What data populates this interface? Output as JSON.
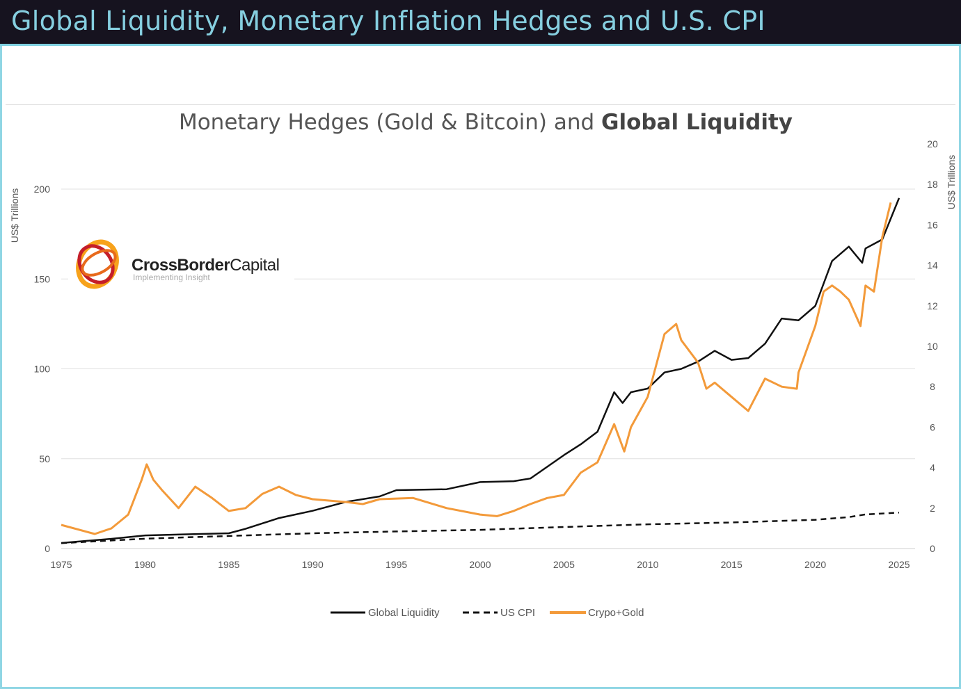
{
  "header": {
    "title": "Global Liquidity, Monetary Inflation Hedges and U.S. CPI"
  },
  "logo": {
    "name": "CrossBorder",
    "name2": "Capital",
    "tagline": "Implementing Insight"
  },
  "colors": {
    "liquidity": "#111111",
    "cpi": "#111111",
    "crypto_gold": "#f39a3a",
    "header_bg": "#16131f",
    "header_text": "#86cfe0"
  },
  "chart_data": {
    "type": "line",
    "title_regular": "Monetary Hedges (Gold & Bitcoin) and ",
    "title_bold": "Global Liquidity",
    "ylabel_left": "US$ Trillions",
    "ylabel_right": "US$ Trillions",
    "xlim": [
      1975,
      2025
    ],
    "ylim_left": [
      0,
      200
    ],
    "ylim_right": [
      0,
      20
    ],
    "x_ticks": [
      "1975",
      "1980",
      "1985",
      "1990",
      "1995",
      "2000",
      "2005",
      "2010",
      "2015",
      "2020",
      "2025"
    ],
    "y_ticks_left": [
      "0",
      "50",
      "100",
      "150",
      "200"
    ],
    "y_ticks_right": [
      "0",
      "2",
      "4",
      "6",
      "8",
      "10",
      "12",
      "14",
      "16",
      "18",
      "20"
    ],
    "grid": true,
    "legend_position": "bottom",
    "series": [
      {
        "name": "Global Liquidity",
        "axis": "left",
        "style": "solid",
        "x": [
          1975,
          1978,
          1980,
          1985,
          1986,
          1988,
          1990,
          1992,
          1994,
          1995,
          1998,
          2000,
          2002,
          2003,
          2005,
          2006,
          2007,
          2008,
          2008.5,
          2009,
          2010,
          2011,
          2012,
          2013,
          2014,
          2015,
          2016,
          2017,
          2018,
          2019,
          2020,
          2021,
          2022,
          2022.8,
          2023,
          2024,
          2025
        ],
        "y": [
          3.1,
          5.4,
          7.3,
          8.5,
          11,
          17,
          21,
          26,
          29,
          32.5,
          33,
          37,
          37.5,
          39,
          52,
          58,
          65,
          87,
          81,
          87,
          89,
          98,
          100,
          104,
          110,
          105,
          106,
          114,
          128,
          127,
          135,
          160,
          168,
          159,
          167,
          172,
          195
        ]
      },
      {
        "name": "US CPI",
        "axis": "left",
        "style": "dashed",
        "x": [
          1975,
          1980,
          1985,
          1990,
          1995,
          2000,
          2005,
          2010,
          2015,
          2020,
          2022,
          2023,
          2025
        ],
        "y": [
          3,
          5.5,
          7,
          8.5,
          9.5,
          10.4,
          12,
          13.5,
          14.5,
          16,
          17.5,
          19,
          20
        ]
      },
      {
        "name": "Crypo+Gold",
        "axis": "right",
        "style": "solid",
        "x": [
          1975,
          1977,
          1978,
          1979,
          1979.8,
          1980.1,
          1980.5,
          1981,
          1982,
          1983,
          1984,
          1985,
          1986,
          1987,
          1988,
          1989,
          1990,
          1992,
          1993,
          1994,
          1996,
          1998,
          2000,
          2001,
          2002,
          2003,
          2004,
          2005,
          2006,
          2007,
          2008,
          2008.6,
          2009,
          2010,
          2011,
          2011.7,
          2012,
          2013,
          2013.5,
          2014,
          2015,
          2016,
          2017,
          2018,
          2018.9,
          2019,
          2020,
          2020.5,
          2021,
          2021.5,
          2022,
          2022.7,
          2023,
          2023.5,
          2024,
          2024.5
        ],
        "y": [
          1.17,
          0.72,
          1.0,
          1.68,
          3.4,
          4.16,
          3.4,
          2.9,
          2.0,
          3.06,
          2.5,
          1.86,
          2.0,
          2.7,
          3.06,
          2.65,
          2.44,
          2.3,
          2.2,
          2.44,
          2.5,
          2.0,
          1.68,
          1.6,
          1.86,
          2.2,
          2.5,
          2.65,
          3.75,
          4.26,
          6.15,
          4.8,
          6.0,
          7.5,
          10.6,
          11.1,
          10.3,
          9.2,
          7.9,
          8.2,
          7.5,
          6.8,
          8.4,
          8.0,
          7.9,
          8.7,
          11.0,
          12.7,
          13.0,
          12.7,
          12.3,
          11.0,
          13.0,
          12.7,
          15.4,
          17.1
        ]
      }
    ]
  }
}
